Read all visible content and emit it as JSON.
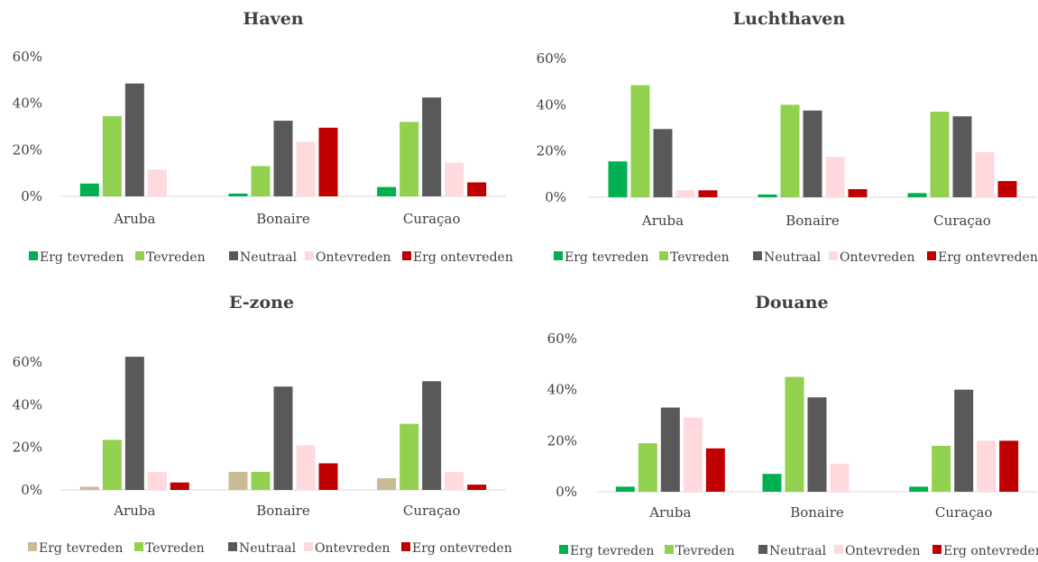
{
  "categories": [
    "Aruba",
    "Bonaire",
    "Curaçao"
  ],
  "legend": [
    "Erg tevreden",
    "Tevreden",
    "Neutraal",
    "Ontevreden",
    "Erg ontevreden"
  ],
  "colors": {
    "green_dark": "#00B050",
    "green_light": "#92D050",
    "gray": "#595959",
    "pink": "#FFD9DE",
    "red": "#C00000",
    "tan": "#C8BC96"
  },
  "chart_data": [
    {
      "type": "bar",
      "title": "Haven",
      "categories": [
        "Aruba",
        "Bonaire",
        "Curaçao"
      ],
      "yticks": [
        "0%",
        "20%",
        "40%",
        "60%"
      ],
      "ylim": [
        0,
        60
      ],
      "series": [
        {
          "name": "Erg tevreden",
          "color": "#00B050",
          "values": [
            5.5,
            1.2,
            4
          ]
        },
        {
          "name": "Tevreden",
          "color": "#92D050",
          "values": [
            34.5,
            13,
            32
          ]
        },
        {
          "name": "Neutraal",
          "color": "#595959",
          "values": [
            48.5,
            32.5,
            42.5
          ]
        },
        {
          "name": "Ontevreden",
          "color": "#FFD9DE",
          "values": [
            11.5,
            23.5,
            14.5
          ]
        },
        {
          "name": "Erg ontevreden",
          "color": "#C00000",
          "values": [
            0,
            29.5,
            6
          ]
        }
      ]
    },
    {
      "type": "bar",
      "title": "Luchthaven",
      "categories": [
        "Aruba",
        "Bonaire",
        "Curaçao"
      ],
      "yticks": [
        "0%",
        "20%",
        "40%",
        "60%"
      ],
      "ylim": [
        0,
        60
      ],
      "series": [
        {
          "name": "Erg tevreden",
          "color": "#00B050",
          "values": [
            15.5,
            1.2,
            1.8
          ]
        },
        {
          "name": "Tevreden",
          "color": "#92D050",
          "values": [
            48.5,
            40,
            37
          ]
        },
        {
          "name": "Neutraal",
          "color": "#595959",
          "values": [
            29.5,
            37.5,
            35
          ]
        },
        {
          "name": "Ontevreden",
          "color": "#FFD9DE",
          "values": [
            3,
            17.5,
            19.5
          ]
        },
        {
          "name": "Erg ontevreden",
          "color": "#C00000",
          "values": [
            3,
            3.5,
            7
          ]
        }
      ]
    },
    {
      "type": "bar",
      "title": "E-zone",
      "categories": [
        "Aruba",
        "Bonaire",
        "Curaçao"
      ],
      "yticks": [
        "0%",
        "20%",
        "40%",
        "60%"
      ],
      "ylim": [
        0,
        60
      ],
      "series": [
        {
          "name": "Erg tevreden",
          "color": "#C8BC96",
          "values": [
            1.5,
            8.5,
            5.5
          ]
        },
        {
          "name": "Tevreden",
          "color": "#92D050",
          "values": [
            23.5,
            8.5,
            31
          ]
        },
        {
          "name": "Neutraal",
          "color": "#595959",
          "values": [
            62.5,
            48.5,
            51
          ]
        },
        {
          "name": "Ontevreden",
          "color": "#FFD9DE",
          "values": [
            8.5,
            21,
            8.5
          ]
        },
        {
          "name": "Erg ontevreden",
          "color": "#C00000",
          "values": [
            3.5,
            12.5,
            2.5
          ]
        }
      ]
    },
    {
      "type": "bar",
      "title": "Douane",
      "categories": [
        "Aruba",
        "Bonaire",
        "Curaçao"
      ],
      "yticks": [
        "0%",
        "20%",
        "40%",
        "60%"
      ],
      "ylim": [
        0,
        60
      ],
      "series": [
        {
          "name": "Erg tevreden",
          "color": "#00B050",
          "values": [
            2,
            7,
            2
          ]
        },
        {
          "name": "Tevreden",
          "color": "#92D050",
          "values": [
            19,
            45,
            18
          ]
        },
        {
          "name": "Neutraal",
          "color": "#595959",
          "values": [
            33,
            37,
            40
          ]
        },
        {
          "name": "Ontevreden",
          "color": "#FFD9DE",
          "values": [
            29,
            11,
            20
          ]
        },
        {
          "name": "Erg ontevreden",
          "color": "#C00000",
          "values": [
            17,
            0,
            20
          ]
        }
      ]
    }
  ]
}
